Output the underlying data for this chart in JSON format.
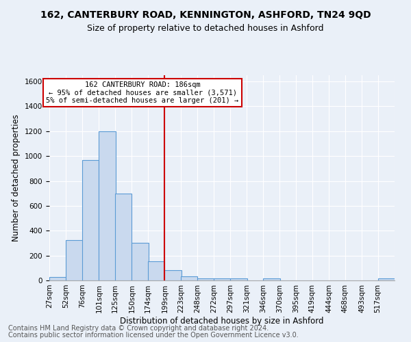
{
  "title": "162, CANTERBURY ROAD, KENNINGTON, ASHFORD, TN24 9QD",
  "subtitle": "Size of property relative to detached houses in Ashford",
  "xlabel": "Distribution of detached houses by size in Ashford",
  "ylabel": "Number of detached properties",
  "footnote1": "Contains HM Land Registry data © Crown copyright and database right 2024.",
  "footnote2": "Contains public sector information licensed under the Open Government Licence v3.0.",
  "bin_labels": [
    "27sqm",
    "52sqm",
    "76sqm",
    "101sqm",
    "125sqm",
    "150sqm",
    "174sqm",
    "199sqm",
    "223sqm",
    "248sqm",
    "272sqm",
    "297sqm",
    "321sqm",
    "346sqm",
    "370sqm",
    "395sqm",
    "419sqm",
    "444sqm",
    "468sqm",
    "493sqm",
    "517sqm"
  ],
  "bar_heights": [
    30,
    325,
    968,
    1197,
    697,
    305,
    155,
    80,
    35,
    18,
    15,
    15,
    0,
    18,
    0,
    0,
    0,
    0,
    0,
    0,
    18
  ],
  "bar_color": "#c9d9ee",
  "bar_edge_color": "#5b9bd5",
  "annotation_line1": "162 CANTERBURY ROAD: 186sqm",
  "annotation_line2": "← 95% of detached houses are smaller (3,571)",
  "annotation_line3": "5% of semi-detached houses are larger (201) →",
  "annotation_box_color": "#ffffff",
  "annotation_box_edge_color": "#cc0000",
  "vline_x": 186,
  "vline_color": "#cc0000",
  "ylim": [
    0,
    1650
  ],
  "background_color": "#eaf0f8",
  "grid_color": "#ffffff",
  "title_fontsize": 10,
  "subtitle_fontsize": 9,
  "axis_label_fontsize": 8.5,
  "tick_fontsize": 7.5,
  "footnote_fontsize": 7,
  "bin_centers": [
    27,
    52,
    76,
    101,
    125,
    150,
    174,
    199,
    223,
    248,
    272,
    297,
    321,
    346,
    370,
    395,
    419,
    444,
    468,
    493,
    517
  ],
  "bin_width": 25
}
